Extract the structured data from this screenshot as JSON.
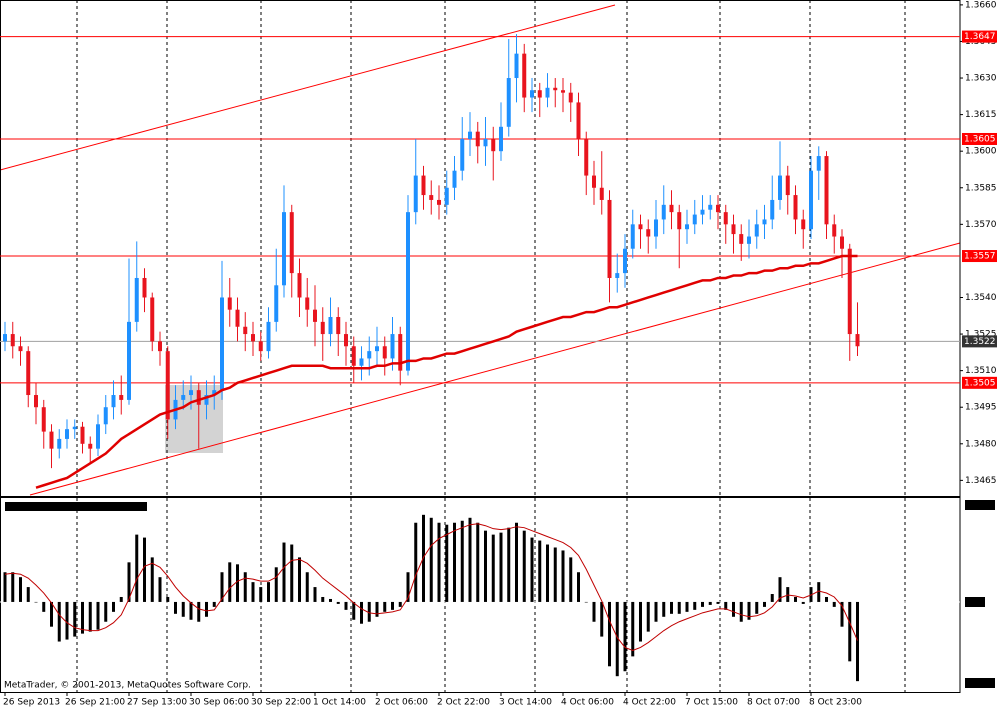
{
  "chart_data": {
    "type": "candlestick",
    "categories": [
      "26 Sep 2013",
      null,
      null,
      null,
      null,
      null,
      null,
      null,
      "26 Sep 21:00",
      null,
      null,
      null,
      null,
      null,
      null,
      null,
      "27 Sep 13:00",
      null,
      null,
      null,
      null,
      null,
      null,
      null,
      "30 Sep 06:00",
      null,
      null,
      null,
      null,
      null,
      null,
      null,
      "30 Sep 22:00",
      null,
      null,
      null,
      null,
      null,
      null,
      null,
      "1 Oct 14:00",
      null,
      null,
      null,
      null,
      null,
      null,
      null,
      "2 Oct 06:00",
      null,
      null,
      null,
      null,
      null,
      null,
      null,
      "2 Oct 22:00",
      null,
      null,
      null,
      null,
      null,
      null,
      null,
      "3 Oct 14:00",
      null,
      null,
      null,
      null,
      null,
      null,
      null,
      "4 Oct 06:00",
      null,
      null,
      null,
      null,
      null,
      null,
      null,
      "4 Oct 22:00",
      null,
      null,
      null,
      null,
      null,
      null,
      null,
      "7 Oct 15:00",
      null,
      null,
      null,
      null,
      null,
      null,
      null,
      "8 Oct 07:00",
      null,
      null,
      null,
      null,
      null,
      null,
      null,
      "8 Oct 23:00",
      null,
      null,
      null,
      null,
      null,
      null
    ],
    "open": [
      1.3522,
      1.3525,
      1.352,
      1.3518,
      1.35,
      1.3495,
      1.3485,
      1.3478,
      1.3482,
      1.3486,
      1.3487,
      1.348,
      1.3478,
      1.3488,
      1.3495,
      1.35,
      1.3498,
      1.353,
      1.3548,
      1.354,
      1.3522,
      1.3518,
      1.349,
      1.3498,
      1.35,
      1.3502,
      1.3496,
      1.35,
      1.3502,
      1.354,
      1.3535,
      1.3528,
      1.3525,
      1.3522,
      1.3518,
      1.353,
      1.3545,
      1.3575,
      1.355,
      1.354,
      1.3535,
      1.353,
      1.3525,
      1.3532,
      1.3525,
      1.352,
      1.3512,
      1.3515,
      1.3518,
      1.352,
      1.3515,
      1.3525,
      1.351,
      1.3575,
      1.359,
      1.3582,
      1.358,
      1.3578,
      1.3585,
      1.3592,
      1.3605,
      1.3608,
      1.3602,
      1.3605,
      1.36,
      1.361,
      1.363,
      1.364,
      1.3622,
      1.3625,
      1.3622,
      1.3626,
      1.3625,
      1.3624,
      1.362,
      1.3605,
      1.359,
      1.3585,
      1.358,
      1.3548,
      1.355,
      1.356,
      1.357,
      1.3568,
      1.3565,
      1.3572,
      1.3578,
      1.3575,
      1.3568,
      1.357,
      1.3574,
      1.3576,
      1.3578,
      1.3575,
      1.357,
      1.3566,
      1.3562,
      1.3565,
      1.357,
      1.3572,
      1.358,
      1.359,
      1.3582,
      1.3572,
      1.3568,
      1.3592,
      1.3598,
      1.357,
      1.3565,
      1.356,
      1.3525
    ],
    "high": [
      1.353,
      1.353,
      1.3524,
      1.352,
      1.3505,
      1.3498,
      1.3488,
      1.3486,
      1.349,
      1.349,
      1.3489,
      1.3483,
      1.3492,
      1.35,
      1.3506,
      1.3508,
      1.3556,
      1.3563,
      1.3552,
      1.3542,
      1.3526,
      1.352,
      1.3504,
      1.3506,
      1.3508,
      1.3505,
      1.3506,
      1.3508,
      1.3555,
      1.3548,
      1.354,
      1.3534,
      1.353,
      1.3526,
      1.3536,
      1.356,
      1.3586,
      1.3578,
      1.3556,
      1.3548,
      1.3545,
      1.3536,
      1.354,
      1.3536,
      1.353,
      1.3524,
      1.352,
      1.3524,
      1.3528,
      1.3524,
      1.3532,
      1.3528,
      1.3582,
      1.3605,
      1.3594,
      1.3588,
      1.3586,
      1.3592,
      1.3598,
      1.3614,
      1.3616,
      1.3612,
      1.3614,
      1.361,
      1.362,
      1.3646,
      1.3648,
      1.3644,
      1.363,
      1.3628,
      1.3632,
      1.363,
      1.363,
      1.3628,
      1.3624,
      1.3608,
      1.3596,
      1.36,
      1.3584,
      1.3558,
      1.3566,
      1.3576,
      1.3574,
      1.3572,
      1.358,
      1.3586,
      1.3584,
      1.3578,
      1.3576,
      1.358,
      1.3582,
      1.3582,
      1.3582,
      1.3578,
      1.3574,
      1.357,
      1.3572,
      1.3576,
      1.3578,
      1.359,
      1.3604,
      1.3594,
      1.3586,
      1.3576,
      1.3598,
      1.3602,
      1.36,
      1.3574,
      1.3568,
      1.3562,
      1.3538
    ],
    "low": [
      1.3518,
      1.3515,
      1.3512,
      1.3495,
      1.3488,
      1.3478,
      1.347,
      1.3474,
      1.3478,
      1.3482,
      1.3476,
      1.3472,
      1.3475,
      1.3484,
      1.349,
      1.3492,
      1.3496,
      1.3526,
      1.3534,
      1.3518,
      1.3512,
      1.3482,
      1.3486,
      1.3494,
      1.3494,
      1.3478,
      1.349,
      1.3494,
      1.3498,
      1.3528,
      1.3522,
      1.3518,
      1.3516,
      1.3514,
      1.3515,
      1.3526,
      1.354,
      1.354,
      1.3532,
      1.3528,
      1.352,
      1.3514,
      1.352,
      1.3516,
      1.3512,
      1.3505,
      1.3506,
      1.3508,
      1.3512,
      1.3508,
      1.351,
      1.3504,
      1.3508,
      1.357,
      1.3576,
      1.3574,
      1.3572,
      1.3574,
      1.358,
      1.3588,
      1.3598,
      1.3595,
      1.3594,
      1.3588,
      1.3596,
      1.3606,
      1.362,
      1.3616,
      1.3616,
      1.3614,
      1.3618,
      1.3618,
      1.3616,
      1.3612,
      1.3598,
      1.3582,
      1.3578,
      1.3574,
      1.3538,
      1.3542,
      1.3544,
      1.3556,
      1.356,
      1.3558,
      1.356,
      1.3566,
      1.3568,
      1.3552,
      1.3562,
      1.3566,
      1.357,
      1.3572,
      1.3568,
      1.3562,
      1.3558,
      1.3555,
      1.3556,
      1.356,
      1.3564,
      1.3568,
      1.3576,
      1.3574,
      1.3566,
      1.356,
      1.3564,
      1.358,
      1.3564,
      1.3558,
      1.3548,
      1.3514,
      1.3516
    ],
    "close": [
      1.3525,
      1.352,
      1.3518,
      1.35,
      1.3495,
      1.3485,
      1.3478,
      1.3482,
      1.3486,
      1.3487,
      1.348,
      1.3478,
      1.3488,
      1.3495,
      1.35,
      1.3498,
      1.353,
      1.3548,
      1.354,
      1.3522,
      1.3518,
      1.349,
      1.3498,
      1.35,
      1.3502,
      1.3496,
      1.35,
      1.3502,
      1.354,
      1.3535,
      1.3528,
      1.3525,
      1.3522,
      1.3518,
      1.353,
      1.3545,
      1.3575,
      1.355,
      1.354,
      1.3535,
      1.353,
      1.3525,
      1.3532,
      1.3525,
      1.352,
      1.3512,
      1.3515,
      1.3518,
      1.352,
      1.3515,
      1.3525,
      1.351,
      1.3575,
      1.359,
      1.3582,
      1.358,
      1.3578,
      1.3585,
      1.3592,
      1.3605,
      1.3608,
      1.3602,
      1.3605,
      1.36,
      1.361,
      1.363,
      1.364,
      1.3622,
      1.3625,
      1.3622,
      1.3626,
      1.3625,
      1.3624,
      1.362,
      1.3605,
      1.359,
      1.3585,
      1.358,
      1.3548,
      1.355,
      1.356,
      1.357,
      1.3568,
      1.3565,
      1.3572,
      1.3578,
      1.3575,
      1.3568,
      1.357,
      1.3574,
      1.3576,
      1.3578,
      1.3575,
      1.357,
      1.3566,
      1.3562,
      1.3565,
      1.357,
      1.3572,
      1.358,
      1.359,
      1.3582,
      1.3572,
      1.3568,
      1.3592,
      1.3598,
      1.357,
      1.3565,
      1.356,
      1.3525,
      1.352
    ],
    "up_color": "#1e90ff",
    "down_color": "#e8141e",
    "ma": {
      "color": "#e00000",
      "values": [
        null,
        null,
        null,
        null,
        1.3462,
        1.3463,
        1.3464,
        1.3465,
        1.3466,
        1.3468,
        1.347,
        1.3472,
        1.3474,
        1.3476,
        1.3479,
        1.3482,
        1.3484,
        1.3486,
        1.3488,
        1.349,
        1.3492,
        1.3493,
        1.3494,
        1.3495,
        1.3497,
        1.3498,
        1.3499,
        1.35,
        1.3502,
        1.3503,
        1.3505,
        1.3506,
        1.3507,
        1.3508,
        1.3509,
        1.351,
        1.3511,
        1.3512,
        1.3512,
        1.3512,
        1.3512,
        1.3512,
        1.3511,
        1.3511,
        1.3511,
        1.3511,
        1.3511,
        1.3511,
        1.3512,
        1.3512,
        1.3513,
        1.3513,
        1.3514,
        1.3514,
        1.3515,
        1.3515,
        1.3516,
        1.3517,
        1.3517,
        1.3518,
        1.3519,
        1.352,
        1.3521,
        1.3522,
        1.3523,
        1.3524,
        1.3526,
        1.3527,
        1.3528,
        1.3529,
        1.353,
        1.3531,
        1.3532,
        1.3532,
        1.3533,
        1.3534,
        1.3534,
        1.3535,
        1.3536,
        1.3536,
        1.3537,
        1.3538,
        1.3539,
        1.354,
        1.3541,
        1.3542,
        1.3543,
        1.3544,
        1.3545,
        1.3546,
        1.3547,
        1.3547,
        1.3548,
        1.3548,
        1.3549,
        1.3549,
        1.355,
        1.355,
        1.3551,
        1.3551,
        1.3552,
        1.3552,
        1.3553,
        1.3553,
        1.3554,
        1.3554,
        1.3555,
        1.3556,
        1.3557,
        1.3557,
        1.3557
      ]
    },
    "ylim": [
      1.3459,
      1.3662
    ],
    "yticks": [
      {
        "value": 1.366,
        "label": "1.3660"
      },
      1.3645,
      {
        "value": 1.363,
        "label": "1.3630"
      },
      1.3615,
      {
        "value": 1.36,
        "label": "1.3600"
      },
      1.3585,
      {
        "value": 1.357,
        "label": "1.3570"
      },
      {
        "value": 1.354,
        "label": "1.3540"
      },
      1.3525,
      {
        "value": 1.351,
        "label": "1.3510"
      },
      1.3495,
      {
        "value": 1.348,
        "label": "1.3480"
      },
      1.3465
    ],
    "levels": [
      1.3647,
      1.3605,
      1.3557,
      1.3505
    ],
    "level_color": "#ff0000",
    "current_price": 1.3522,
    "indicator": {
      "type": "bar",
      "color": "#000000",
      "signal_color": "#c00000",
      "ylim": [
        -94,
        106
      ],
      "values": [
        30,
        30,
        25,
        15,
        0,
        -10,
        -25,
        -40,
        -38,
        -35,
        -32,
        -30,
        -28,
        -20,
        -10,
        5,
        40,
        68,
        65,
        45,
        25,
        5,
        -12,
        -15,
        -18,
        -20,
        -15,
        -5,
        30,
        40,
        38,
        30,
        20,
        15,
        20,
        35,
        60,
        58,
        45,
        30,
        15,
        5,
        3,
        -2,
        -8,
        -18,
        -22,
        -20,
        -15,
        -10,
        -8,
        -5,
        30,
        80,
        88,
        85,
        80,
        78,
        80,
        82,
        85,
        80,
        72,
        68,
        70,
        75,
        80,
        72,
        65,
        62,
        58,
        55,
        52,
        45,
        30,
        0,
        -20,
        -35,
        -65,
        -75,
        -70,
        -55,
        -40,
        -30,
        -20,
        -15,
        -12,
        -12,
        -10,
        -8,
        -5,
        -3,
        -2,
        -8,
        -15,
        -20,
        -18,
        -12,
        -5,
        8,
        25,
        15,
        5,
        -2,
        15,
        20,
        5,
        -5,
        -25,
        -60,
        -80
      ],
      "signal": [
        28,
        29,
        28,
        24,
        17,
        9,
        -1,
        -13,
        -21,
        -26,
        -28,
        -29,
        -29,
        -26,
        -21,
        -13,
        3,
        23,
        36,
        39,
        35,
        26,
        15,
        6,
        -1,
        -7,
        -9,
        -8,
        3,
        14,
        21,
        24,
        23,
        21,
        21,
        25,
        35,
        42,
        43,
        39,
        32,
        24,
        18,
        12,
        6,
        -1,
        -7,
        -11,
        -12,
        -11,
        -10,
        -8,
        4,
        27,
        45,
        57,
        64,
        68,
        72,
        75,
        78,
        79,
        77,
        74,
        73,
        74,
        76,
        75,
        72,
        69,
        66,
        63,
        60,
        55,
        47,
        33,
        17,
        1,
        -19,
        -36,
        -46,
        -49,
        -46,
        -41,
        -35,
        -29,
        -24,
        -20,
        -17,
        -14,
        -11,
        -9,
        -7,
        -7,
        -10,
        -13,
        -15,
        -14,
        -11,
        -5,
        4,
        7,
        6,
        4,
        7,
        11,
        9,
        5,
        -4,
        -21,
        -39
      ]
    },
    "footer": "MetaTrader, © 2001-2013, MetaQuotes Software Corp."
  }
}
